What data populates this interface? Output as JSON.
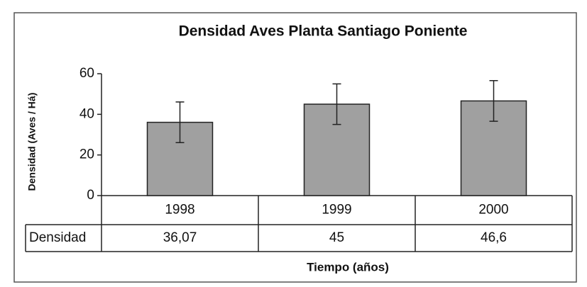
{
  "chart_data": {
    "type": "bar",
    "title": "Densidad Aves Planta Santiago Poniente",
    "x_label": "Tiempo  (años)",
    "y_label": "Densidad (Aves / Há)",
    "categories": [
      "1998",
      "1999",
      "2000"
    ],
    "series": [
      {
        "name": "Densidad",
        "color": "#a0a0a0",
        "values": [
          36.07,
          45,
          46.6
        ],
        "value_labels": [
          "36,07",
          "45",
          "46,6"
        ],
        "errors": [
          10,
          10,
          10
        ]
      }
    ],
    "ylim": [
      0,
      60
    ],
    "yticks": [
      0,
      20,
      40,
      60
    ],
    "grid": false
  }
}
